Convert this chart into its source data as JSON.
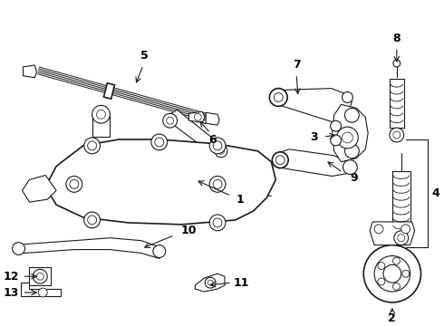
{
  "background_color": "#ffffff",
  "line_color": "#1a1a1a",
  "figsize": [
    4.9,
    3.6
  ],
  "dpi": 100,
  "label_fontsize": 9,
  "label_fontweight": "bold"
}
